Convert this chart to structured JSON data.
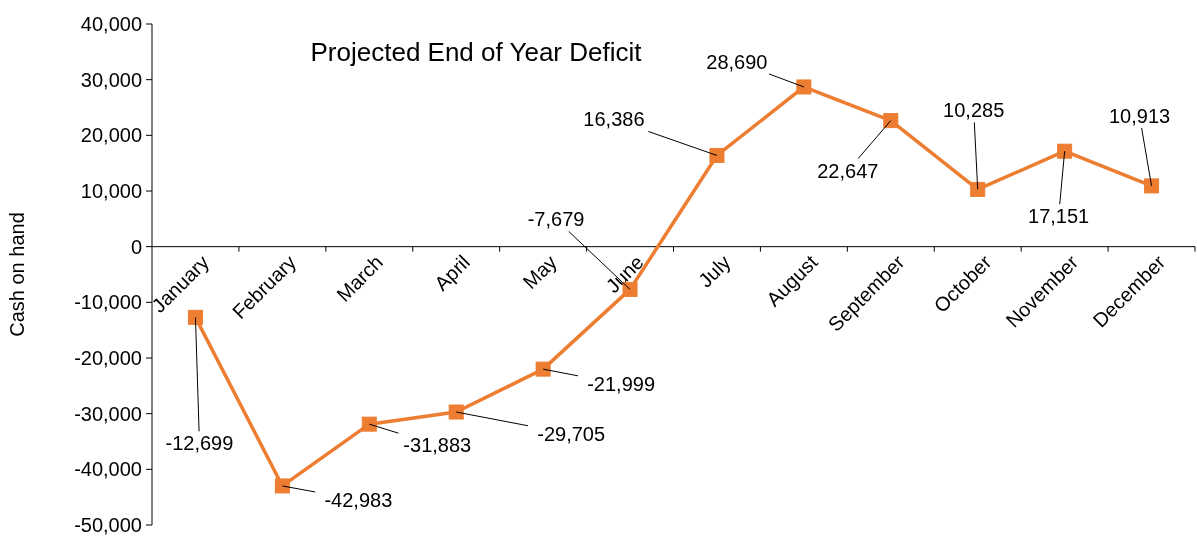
{
  "chart_data": {
    "type": "line",
    "title": "Projected End of Year Deficit",
    "ylabel": "Cash on hand",
    "categories": [
      "January",
      "February",
      "March",
      "April",
      "May",
      "June",
      "July",
      "August",
      "September",
      "October",
      "November",
      "December"
    ],
    "series": [
      {
        "color": "#ed7d31",
        "values": [
          -12699,
          -42983,
          -31883,
          -29705,
          -21999,
          -7679,
          16386,
          28690,
          22647,
          10285,
          17151,
          10913
        ],
        "value_labels": [
          "-12,699",
          "-42,983",
          "-31,883",
          "-29,705",
          "-21,999",
          "-7,679",
          "16,386",
          "28,690",
          "22,647",
          "10,285",
          "17,151",
          "10,913"
        ]
      }
    ],
    "ylim": [
      -50000,
      40000
    ],
    "yticks": [
      {
        "value": -50000,
        "label": "-50,000"
      },
      {
        "value": -40000,
        "label": "-40,000"
      },
      {
        "value": -30000,
        "label": "-30,000"
      },
      {
        "value": -20000,
        "label": "-20,000"
      },
      {
        "value": -10000,
        "label": "-10,000"
      },
      {
        "value": 0,
        "label": "0"
      },
      {
        "value": 10000,
        "label": "10,000"
      },
      {
        "value": 20000,
        "label": "20,000"
      },
      {
        "value": 30000,
        "label": "30,000"
      },
      {
        "value": 40000,
        "label": "40,000"
      }
    ],
    "marker": "square",
    "line_style": "solid",
    "grid": false
  }
}
